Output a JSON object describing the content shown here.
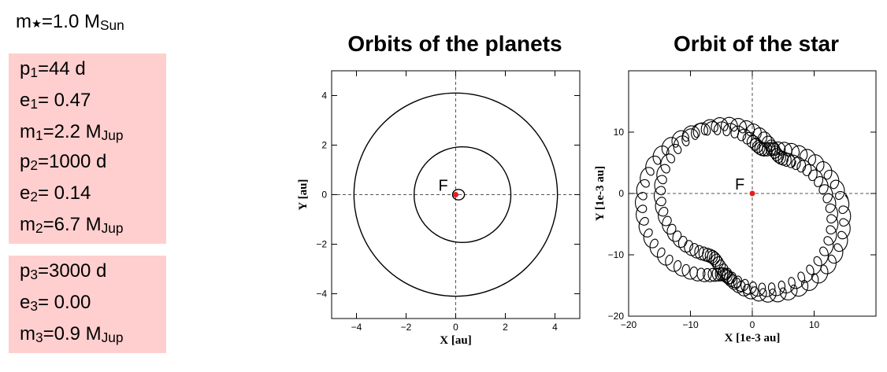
{
  "star": {
    "label": "m",
    "symbol": "★",
    "value": "=1.0 M",
    "unit_sub": "Sun"
  },
  "planets": [
    {
      "p_sub": "1",
      "period": "=44 d",
      "e_sub": "1",
      "ecc": "= 0.47",
      "m_sub": "1",
      "mass": "=2.2 M",
      "mass_sub": "Jup"
    },
    {
      "p_sub": "2",
      "period": "=1000 d",
      "e_sub": "2",
      "ecc": "= 0.14",
      "m_sub": "2",
      "mass": "=6.7 M",
      "mass_sub": "Jup"
    },
    {
      "p_sub": "3",
      "period": "=3000 d",
      "e_sub": "3",
      "ecc": "= 0.00",
      "m_sub": "3",
      "mass": "=0.9 M",
      "mass_sub": "Jup"
    }
  ],
  "chart_data": [
    {
      "type": "line",
      "title": "Orbits of the planets",
      "xlabel": "X [au]",
      "ylabel": "Y [au]",
      "xlim": [
        -5,
        5
      ],
      "ylim": [
        -5,
        5
      ],
      "xticks": [
        -4,
        -2,
        0,
        2,
        4
      ],
      "yticks": [
        -4,
        -2,
        0,
        2,
        4
      ],
      "focus_label": "F",
      "focus_point": [
        0,
        0
      ],
      "focus_color": "#e02020",
      "orbits": [
        {
          "a": 0.24,
          "e": 0.47
        },
        {
          "a": 1.95,
          "e": 0.14
        },
        {
          "a": 4.1,
          "e": 0.0
        }
      ]
    },
    {
      "type": "line",
      "title": "Orbit of the star",
      "xlabel": "X [1e-3 au]",
      "ylabel": "Y [1e-3 au]",
      "xlim": [
        -20,
        20
      ],
      "ylim": [
        -20,
        20
      ],
      "xticks": [
        -20,
        -10,
        0,
        10
      ],
      "yticks": [
        -20,
        -10,
        0,
        10
      ],
      "focus_label": "F",
      "focus_point": [
        0,
        0
      ],
      "focus_color": "#e02020"
    }
  ]
}
